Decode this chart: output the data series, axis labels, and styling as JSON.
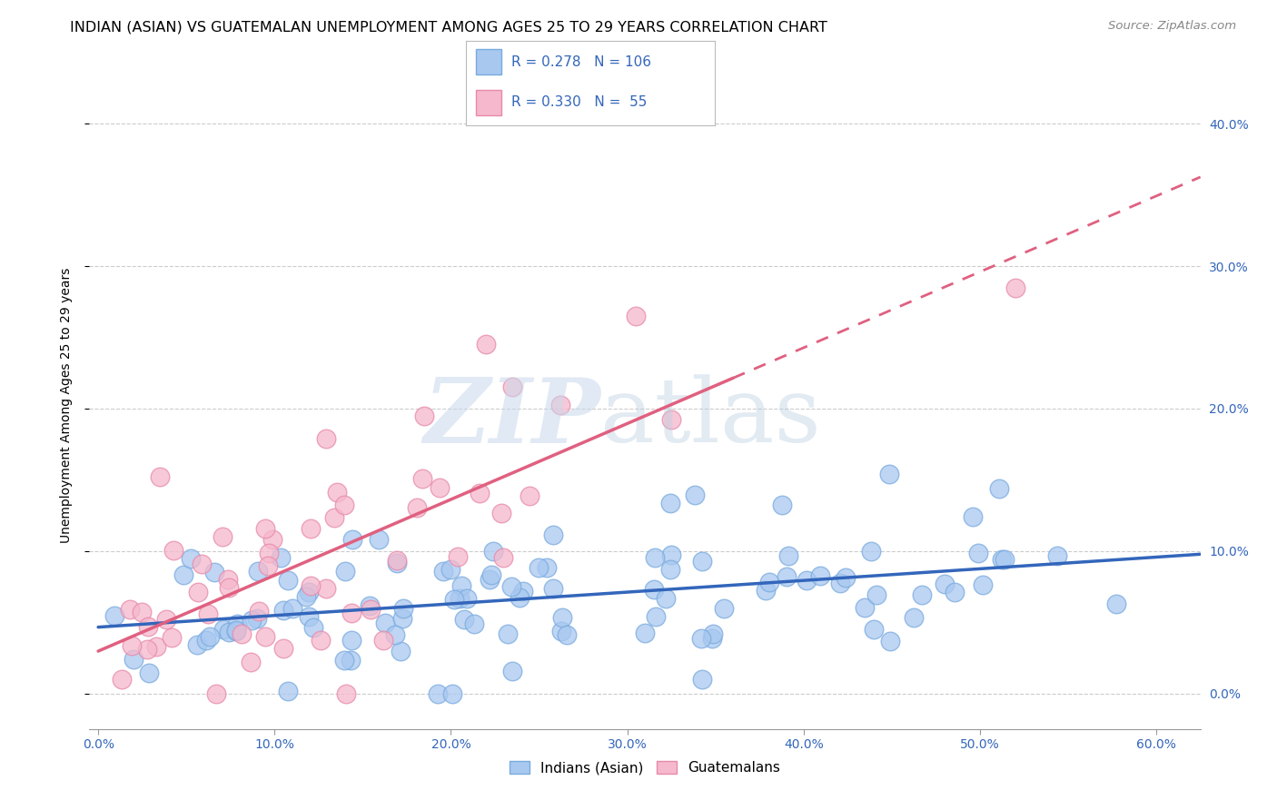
{
  "title": "INDIAN (ASIAN) VS GUATEMALAN UNEMPLOYMENT AMONG AGES 25 TO 29 YEARS CORRELATION CHART",
  "source": "Source: ZipAtlas.com",
  "ylabel": "Unemployment Among Ages 25 to 29 years",
  "xlabel_ticks": [
    "0.0%",
    "10.0%",
    "20.0%",
    "30.0%",
    "40.0%",
    "50.0%",
    "60.0%"
  ],
  "xlabel_vals": [
    0.0,
    0.1,
    0.2,
    0.3,
    0.4,
    0.5,
    0.6
  ],
  "ylabel_ticks": [
    "0.0%",
    "10.0%",
    "20.0%",
    "30.0%",
    "40.0%"
  ],
  "ylabel_vals": [
    0.0,
    0.1,
    0.2,
    0.3,
    0.4
  ],
  "xlim": [
    -0.005,
    0.625
  ],
  "ylim": [
    -0.025,
    0.43
  ],
  "blue_color": "#a8c8f0",
  "blue_edge_color": "#7aabdf",
  "blue_line_color": "#3366bb",
  "pink_color": "#f5b8cc",
  "pink_edge_color": "#e88aaa",
  "pink_line_color": "#e06080",
  "blue_R": 0.278,
  "blue_N": 106,
  "pink_R": 0.33,
  "pink_N": 55,
  "legend_labels": [
    "Indians (Asian)",
    "Guatemalans"
  ],
  "stats_text_color": "#3366bb",
  "title_fontsize": 11.5,
  "axis_label_fontsize": 10,
  "tick_fontsize": 10,
  "legend_fontsize": 11,
  "source_fontsize": 9.5,
  "background_color": "#ffffff",
  "grid_color": "#cccccc",
  "right_axis_color": "#3366bb"
}
